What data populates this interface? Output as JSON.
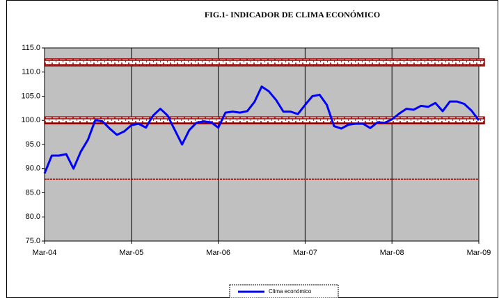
{
  "chart_data": {
    "type": "line",
    "title": "FIG.1- INDICADOR DE CLIMA ECONÓMICO",
    "categories": [
      "Mar-04",
      null,
      null,
      null,
      null,
      null,
      null,
      null,
      null,
      null,
      null,
      null,
      "Mar-05",
      null,
      null,
      null,
      null,
      null,
      null,
      null,
      null,
      null,
      null,
      null,
      "Mar-06",
      null,
      null,
      null,
      null,
      null,
      null,
      null,
      null,
      null,
      null,
      null,
      "Mar-07",
      null,
      null,
      null,
      null,
      null,
      null,
      null,
      null,
      null,
      null,
      null,
      "Mar-08",
      null,
      null,
      null,
      null,
      null,
      null,
      null,
      null,
      null,
      null,
      null,
      "Mar-09"
    ],
    "series": [
      {
        "name": "Clima económico",
        "color": "#0000ff",
        "values": [
          89.0,
          92.7,
          92.7,
          93.0,
          90.0,
          93.5,
          96.0,
          100.0,
          99.8,
          98.3,
          97.0,
          97.7,
          99.0,
          99.3,
          98.5,
          101.0,
          102.4,
          101.0,
          98.0,
          95.0,
          98.0,
          99.5,
          99.8,
          99.6,
          98.5,
          101.6,
          101.8,
          101.6,
          101.9,
          103.8,
          107.0,
          106.0,
          104.2,
          101.8,
          101.8,
          101.3,
          103.2,
          105.0,
          105.3,
          103.2,
          98.8,
          98.3,
          99.1,
          99.3,
          99.3,
          98.4,
          99.6,
          99.5,
          100.2,
          101.4,
          102.4,
          102.2,
          103.0,
          102.8,
          103.6,
          101.9,
          103.9,
          103.9,
          103.4,
          102.0,
          100.0
        ]
      }
    ],
    "ylim": [
      75,
      115
    ],
    "yticks": [
      {
        "value": 75,
        "label": "75.0"
      },
      {
        "value": 80,
        "label": "80.0"
      },
      {
        "value": 85,
        "label": "85.0"
      },
      {
        "value": 90,
        "label": "90.0"
      },
      {
        "value": 95,
        "label": "95.0"
      },
      {
        "value": 100,
        "label": "100.0"
      },
      {
        "value": 105,
        "label": "105.0"
      },
      {
        "value": 110,
        "label": "110.0"
      },
      {
        "value": 115,
        "label": "115.0"
      }
    ],
    "reference_lines": [
      {
        "value": 112,
        "style": "band"
      },
      {
        "value": 100,
        "style": "band"
      },
      {
        "value": 87.8,
        "style": "dashed"
      }
    ],
    "plot_background": "#c0c0c0",
    "legend": "bottom"
  }
}
